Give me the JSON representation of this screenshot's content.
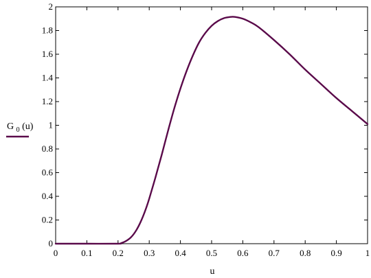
{
  "chart_data": {
    "type": "line",
    "xlabel": "u",
    "ylabel": {
      "main": "G",
      "subscript": "0",
      "argument": "(u)"
    },
    "xlim": [
      0,
      1
    ],
    "ylim": [
      0,
      2
    ],
    "x_ticks": [
      0,
      0.1,
      0.2,
      0.3,
      0.4,
      0.5,
      0.6,
      0.7,
      0.8,
      0.9,
      1
    ],
    "x_tick_labels": [
      "0",
      "0.1",
      "0.2",
      "0.3",
      "0.4",
      "0.5",
      "0.6",
      "0.7",
      "0.8",
      "0.9",
      "1"
    ],
    "y_ticks": [
      0,
      0.2,
      0.4,
      0.6,
      0.8,
      1,
      1.2,
      1.4,
      1.6,
      1.8,
      2
    ],
    "y_tick_labels": [
      "0",
      "0.2",
      "0.4",
      "0.6",
      "0.8",
      "1",
      "1.2",
      "1.4",
      "1.6",
      "1.8",
      "2"
    ],
    "grid": false,
    "legend_placement": "left",
    "series": [
      {
        "color": "#5a0a4a",
        "x": [
          0,
          0.1,
          0.2,
          0.21,
          0.22,
          0.23,
          0.24,
          0.25,
          0.26,
          0.27,
          0.28,
          0.29,
          0.3,
          0.32,
          0.34,
          0.36,
          0.38,
          0.4,
          0.42,
          0.44,
          0.46,
          0.48,
          0.5,
          0.52,
          0.54,
          0.56,
          0.575,
          0.6,
          0.625,
          0.65,
          0.7,
          0.75,
          0.8,
          0.85,
          0.9,
          0.95,
          1.0
        ],
        "y": [
          0,
          0,
          0,
          0.005,
          0.015,
          0.03,
          0.05,
          0.08,
          0.12,
          0.17,
          0.23,
          0.3,
          0.38,
          0.56,
          0.75,
          0.95,
          1.14,
          1.31,
          1.46,
          1.59,
          1.7,
          1.78,
          1.84,
          1.88,
          1.905,
          1.915,
          1.915,
          1.9,
          1.87,
          1.83,
          1.72,
          1.6,
          1.47,
          1.35,
          1.23,
          1.12,
          1.01
        ]
      }
    ]
  },
  "colors": {
    "series_line": "#5a0a4a",
    "axes": "#000000"
  }
}
